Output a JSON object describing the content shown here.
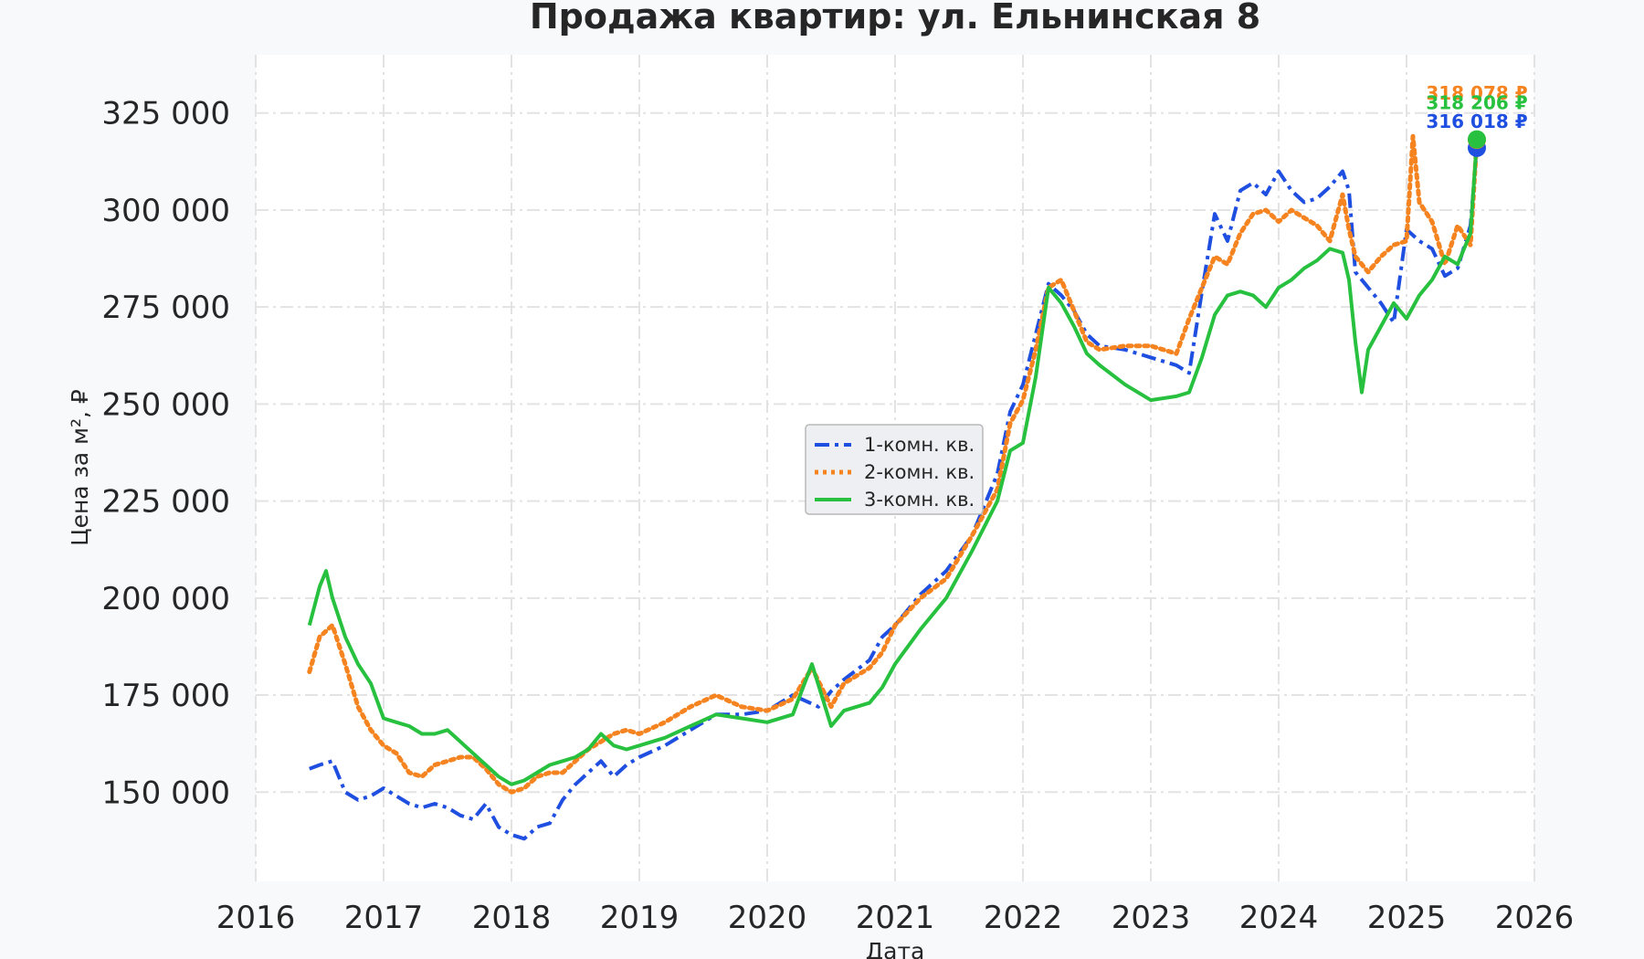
{
  "chart_data": {
    "type": "line",
    "title": "Продажа квартир: ул. Ельнинская 8",
    "xlabel": "Дата",
    "ylabel": "Цена за м², ₽",
    "xlim": [
      2016.0,
      2026.0
    ],
    "ylim": [
      127000,
      340000
    ],
    "x_ticks": [
      2016,
      2017,
      2018,
      2019,
      2020,
      2021,
      2022,
      2023,
      2024,
      2025,
      2026
    ],
    "x_tick_labels": [
      "2016",
      "2017",
      "2018",
      "2019",
      "2020",
      "2021",
      "2022",
      "2023",
      "2024",
      "2025",
      "2026"
    ],
    "y_ticks": [
      150000,
      175000,
      200000,
      225000,
      250000,
      275000,
      300000,
      325000
    ],
    "y_tick_labels": [
      "150 000",
      "175 000",
      "200 000",
      "225 000",
      "250 000",
      "275 000",
      "300 000",
      "325 000"
    ],
    "grid": true,
    "legend_position": "center",
    "series": [
      {
        "name": "1-комн. кв.",
        "color": "#1f4fe0",
        "dash": "dashdot",
        "last_label": "316 018 ₽",
        "last_value": 316018,
        "x": [
          2016.42,
          2016.5,
          2016.6,
          2016.7,
          2016.8,
          2016.9,
          2017.0,
          2017.1,
          2017.2,
          2017.3,
          2017.4,
          2017.5,
          2017.6,
          2017.7,
          2017.8,
          2017.9,
          2018.0,
          2018.1,
          2018.2,
          2018.3,
          2018.4,
          2018.5,
          2018.6,
          2018.7,
          2018.8,
          2018.9,
          2019.0,
          2019.2,
          2019.4,
          2019.6,
          2019.8,
          2020.0,
          2020.2,
          2020.4,
          2020.5,
          2020.6,
          2020.8,
          2020.9,
          2021.0,
          2021.2,
          2021.4,
          2021.6,
          2021.8,
          2021.9,
          2022.0,
          2022.1,
          2022.2,
          2022.3,
          2022.4,
          2022.5,
          2022.6,
          2022.8,
          2023.0,
          2023.2,
          2023.3,
          2023.4,
          2023.5,
          2023.6,
          2023.7,
          2023.8,
          2023.9,
          2024.0,
          2024.1,
          2024.2,
          2024.3,
          2024.4,
          2024.5,
          2024.55,
          2024.6,
          2024.7,
          2024.8,
          2024.9,
          2025.0,
          2025.1,
          2025.2,
          2025.3,
          2025.4,
          2025.5,
          2025.55
        ],
        "y": [
          156000,
          157000,
          158000,
          150000,
          148000,
          149000,
          151000,
          149000,
          147000,
          146000,
          147000,
          146000,
          144000,
          143000,
          147000,
          141000,
          139000,
          138000,
          141000,
          142000,
          148000,
          152000,
          155000,
          158000,
          154000,
          157000,
          159000,
          162000,
          166000,
          170000,
          170000,
          171000,
          175000,
          172000,
          176000,
          179000,
          184000,
          190000,
          193000,
          201000,
          207000,
          216000,
          232000,
          248000,
          255000,
          268000,
          281000,
          278000,
          274000,
          268000,
          265000,
          264000,
          262000,
          260000,
          258000,
          279000,
          299000,
          292000,
          305000,
          307000,
          304000,
          310000,
          305000,
          302000,
          303000,
          306000,
          310000,
          305000,
          284000,
          280000,
          276000,
          271000,
          295000,
          292000,
          290000,
          283000,
          285000,
          296000,
          316018
        ]
      },
      {
        "name": "2-комн. кв.",
        "color": "#f5831f",
        "dash": "dotted",
        "last_label": "318 078 ₽",
        "last_value": 318078,
        "x": [
          2016.42,
          2016.5,
          2016.6,
          2016.7,
          2016.8,
          2016.9,
          2017.0,
          2017.1,
          2017.2,
          2017.3,
          2017.4,
          2017.5,
          2017.6,
          2017.7,
          2017.8,
          2017.9,
          2018.0,
          2018.1,
          2018.2,
          2018.3,
          2018.4,
          2018.5,
          2018.6,
          2018.7,
          2018.8,
          2018.9,
          2019.0,
          2019.2,
          2019.4,
          2019.6,
          2019.8,
          2020.0,
          2020.2,
          2020.35,
          2020.5,
          2020.6,
          2020.8,
          2020.9,
          2021.0,
          2021.2,
          2021.4,
          2021.6,
          2021.8,
          2021.9,
          2022.0,
          2022.1,
          2022.2,
          2022.3,
          2022.4,
          2022.5,
          2022.6,
          2022.8,
          2023.0,
          2023.2,
          2023.3,
          2023.4,
          2023.5,
          2023.6,
          2023.7,
          2023.8,
          2023.9,
          2024.0,
          2024.1,
          2024.2,
          2024.3,
          2024.4,
          2024.5,
          2024.55,
          2024.6,
          2024.7,
          2024.8,
          2024.9,
          2025.0,
          2025.05,
          2025.1,
          2025.2,
          2025.3,
          2025.4,
          2025.5,
          2025.55
        ],
        "y": [
          181000,
          190000,
          193000,
          183000,
          172000,
          166000,
          162000,
          160000,
          155000,
          154000,
          157000,
          158000,
          159000,
          159000,
          156000,
          152000,
          150000,
          151000,
          154000,
          155000,
          155000,
          158000,
          161000,
          163000,
          165000,
          166000,
          165000,
          168000,
          172000,
          175000,
          172000,
          171000,
          174000,
          182000,
          172000,
          178000,
          182000,
          186000,
          193000,
          200000,
          205000,
          216000,
          228000,
          245000,
          251000,
          264000,
          280000,
          282000,
          274000,
          266000,
          264000,
          265000,
          265000,
          263000,
          272000,
          280000,
          288000,
          286000,
          294000,
          299000,
          300000,
          297000,
          300000,
          298000,
          296000,
          292000,
          304000,
          295000,
          288000,
          284000,
          288000,
          291000,
          292000,
          319000,
          302000,
          297000,
          286000,
          296000,
          291000,
          318078
        ]
      },
      {
        "name": "3-комн. кв.",
        "color": "#27c13f",
        "dash": "solid",
        "last_label": "318 206 ₽",
        "last_value": 318206,
        "x": [
          2016.42,
          2016.5,
          2016.55,
          2016.6,
          2016.7,
          2016.8,
          2016.9,
          2017.0,
          2017.1,
          2017.2,
          2017.3,
          2017.4,
          2017.5,
          2017.6,
          2017.7,
          2017.8,
          2017.9,
          2018.0,
          2018.1,
          2018.2,
          2018.3,
          2018.4,
          2018.5,
          2018.6,
          2018.7,
          2018.8,
          2018.9,
          2019.0,
          2019.2,
          2019.4,
          2019.6,
          2019.8,
          2020.0,
          2020.2,
          2020.35,
          2020.5,
          2020.6,
          2020.8,
          2020.9,
          2021.0,
          2021.2,
          2021.4,
          2021.6,
          2021.8,
          2021.9,
          2022.0,
          2022.1,
          2022.2,
          2022.3,
          2022.4,
          2022.5,
          2022.6,
          2022.8,
          2023.0,
          2023.2,
          2023.3,
          2023.4,
          2023.5,
          2023.6,
          2023.7,
          2023.8,
          2023.9,
          2024.0,
          2024.1,
          2024.2,
          2024.3,
          2024.4,
          2024.5,
          2024.55,
          2024.6,
          2024.65,
          2024.7,
          2024.8,
          2024.9,
          2025.0,
          2025.1,
          2025.2,
          2025.3,
          2025.4,
          2025.5,
          2025.55
        ],
        "y": [
          193000,
          203000,
          207000,
          200000,
          190000,
          183000,
          178000,
          169000,
          168000,
          167000,
          165000,
          165000,
          166000,
          163000,
          160000,
          157000,
          154000,
          152000,
          153000,
          155000,
          157000,
          158000,
          159000,
          161000,
          165000,
          162000,
          161000,
          162000,
          164000,
          167000,
          170000,
          169000,
          168000,
          170000,
          183000,
          167000,
          171000,
          173000,
          177000,
          183000,
          192000,
          200000,
          212000,
          225000,
          238000,
          240000,
          257000,
          280000,
          276000,
          270000,
          263000,
          260000,
          255000,
          251000,
          252000,
          253000,
          262000,
          273000,
          278000,
          279000,
          278000,
          275000,
          280000,
          282000,
          285000,
          287000,
          290000,
          289000,
          282000,
          266000,
          253000,
          264000,
          270000,
          276000,
          272000,
          278000,
          282000,
          288000,
          286000,
          294000,
          318206
        ]
      }
    ]
  }
}
